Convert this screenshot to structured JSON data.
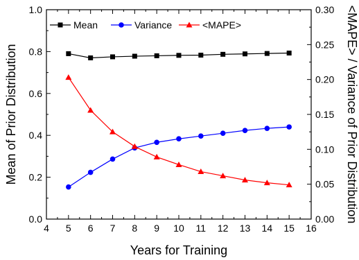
{
  "chart_data": {
    "type": "line",
    "xlabel": "Years for Training",
    "ylabel_left": "Mean of Prior Distribution",
    "ylabel_right": "<MAPE> / Variance of Prior Distribution",
    "xlim": [
      4,
      16
    ],
    "ylim_left": [
      0.0,
      1.0
    ],
    "ylim_right": [
      0.0,
      0.3
    ],
    "x_ticks": [
      "4",
      "5",
      "6",
      "7",
      "8",
      "9",
      "10",
      "11",
      "12",
      "13",
      "14",
      "15",
      "16"
    ],
    "y_left_ticks": [
      "0.0",
      "0.2",
      "0.4",
      "0.6",
      "0.8",
      "1.0"
    ],
    "y_right_ticks": [
      "0.00",
      "0.05",
      "0.10",
      "0.15",
      "0.20",
      "0.25",
      "0.30"
    ],
    "x": [
      5,
      6,
      7,
      8,
      9,
      10,
      11,
      12,
      13,
      14,
      15
    ],
    "legend_position": "top",
    "grid": false,
    "series": [
      {
        "name": "Mean",
        "axis": "left",
        "marker": "square",
        "color": "#000000",
        "values": [
          0.79,
          0.77,
          0.775,
          0.778,
          0.78,
          0.782,
          0.783,
          0.787,
          0.789,
          0.791,
          0.793
        ]
      },
      {
        "name": "Variance",
        "axis": "right",
        "marker": "circle",
        "color": "#0000ff",
        "values": [
          0.046,
          0.067,
          0.086,
          0.102,
          0.11,
          0.115,
          0.119,
          0.123,
          0.127,
          0.13,
          0.132
        ]
      },
      {
        "name": "<MAPE>",
        "axis": "right",
        "marker": "triangle",
        "color": "#ff0000",
        "values": [
          0.203,
          0.156,
          0.125,
          0.104,
          0.089,
          0.078,
          0.068,
          0.062,
          0.056,
          0.052,
          0.049
        ]
      }
    ]
  }
}
